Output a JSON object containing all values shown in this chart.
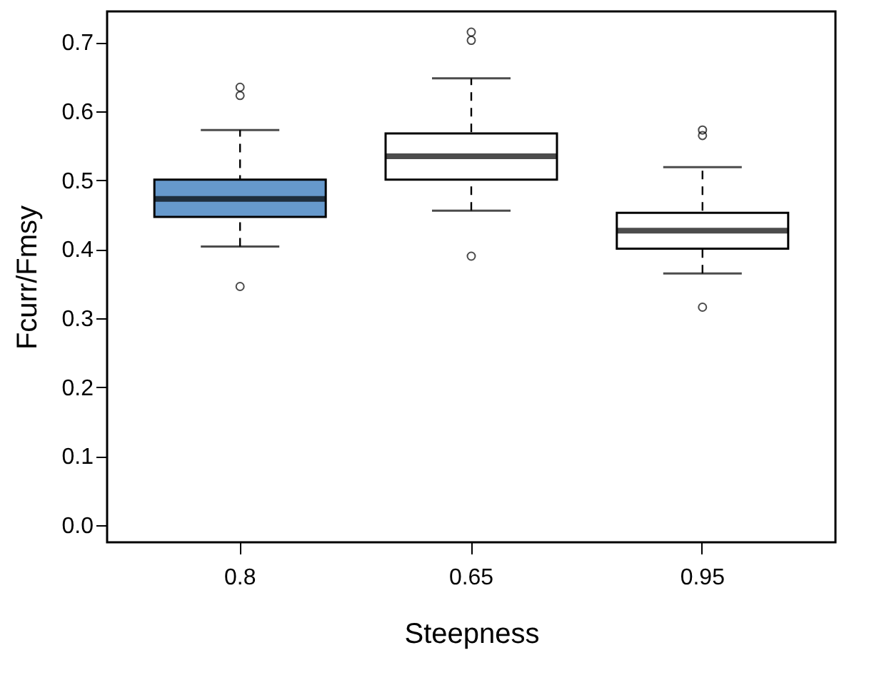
{
  "chart_data": {
    "type": "box",
    "xlabel": "Steepness",
    "ylabel": "Fcurr/Fmsy",
    "categories": [
      "0.8",
      "0.65",
      "0.95"
    ],
    "colors": [
      "#6699cc",
      "#ffffff",
      "#ffffff"
    ],
    "boxes": [
      {
        "low": 0.404,
        "q1": 0.447,
        "median": 0.473,
        "q3": 0.501,
        "high": 0.573,
        "outliers": [
          0.346,
          0.623,
          0.635
        ]
      },
      {
        "low": 0.456,
        "q1": 0.501,
        "median": 0.535,
        "q3": 0.568,
        "high": 0.648,
        "outliers": [
          0.39,
          0.703,
          0.715
        ]
      },
      {
        "low": 0.365,
        "q1": 0.401,
        "median": 0.427,
        "q3": 0.453,
        "high": 0.519,
        "outliers": [
          0.316,
          0.565,
          0.573
        ]
      }
    ],
    "ylim": [
      -0.025,
      0.745
    ],
    "yticks": [
      {
        "value": 0,
        "label": "0.0"
      },
      0.1,
      0.2,
      0.3,
      0.4,
      0.5,
      0.6,
      0.7
    ],
    "grid": false
  }
}
